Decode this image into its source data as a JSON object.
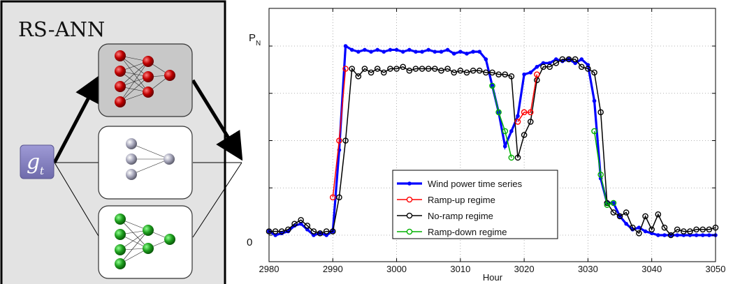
{
  "diagram": {
    "title": "RS-ANN",
    "input_symbol": "g",
    "input_subscript": "t",
    "colors": {
      "panel_bg": "#e3e3e3",
      "active_box_bg": "#c8c8c8",
      "input_box": "#8d89c6",
      "red_nodes": "#c00000",
      "gray_nodes": "#a0a0b8",
      "green_nodes": "#1fa01f"
    }
  },
  "chart_data": {
    "type": "line",
    "xlabel": "Hour",
    "ylabel": "",
    "y_tick_labels": {
      "top_main": "P",
      "top_sub": "N",
      "bottom": "0"
    },
    "xlim": [
      2980,
      3050
    ],
    "ylim": [
      0,
      1.04
    ],
    "x_ticks": [
      2980,
      2990,
      3000,
      3010,
      3020,
      3030,
      3040,
      3050
    ],
    "y_ticks": [
      0,
      0.25,
      0.5,
      0.75,
      1.0
    ],
    "grid": true,
    "legend_position": "lower-center",
    "series": [
      {
        "name": "Wind power time series",
        "color": "#0000ff",
        "marker": "dot",
        "x": [
          2980,
          2981,
          2982,
          2983,
          2984,
          2985,
          2986,
          2987,
          2988,
          2989,
          2990,
          2991,
          2992,
          2993,
          2994,
          2995,
          2996,
          2997,
          2998,
          2999,
          3000,
          3001,
          3002,
          3003,
          3004,
          3005,
          3006,
          3007,
          3008,
          3009,
          3010,
          3011,
          3012,
          3013,
          3014,
          3015,
          3016,
          3017,
          3018,
          3019,
          3020,
          3021,
          3022,
          3023,
          3024,
          3025,
          3026,
          3027,
          3028,
          3029,
          3030,
          3031,
          3032,
          3033,
          3034,
          3035,
          3036,
          3037,
          3038,
          3039,
          3040,
          3041,
          3042,
          3043,
          3044,
          3045,
          3046,
          3047,
          3048,
          3049,
          3050
        ],
        "y": [
          0.02,
          0.0,
          0.01,
          0.02,
          0.05,
          0.06,
          0.03,
          0.0,
          0.01,
          0.0,
          0.02,
          0.45,
          1.0,
          0.98,
          0.97,
          0.98,
          0.97,
          0.98,
          0.97,
          0.98,
          0.98,
          0.97,
          0.98,
          0.97,
          0.97,
          0.98,
          0.97,
          0.97,
          0.98,
          0.96,
          0.97,
          0.96,
          0.97,
          0.97,
          0.93,
          0.79,
          0.65,
          0.47,
          0.55,
          0.63,
          0.85,
          0.86,
          0.89,
          0.91,
          0.91,
          0.93,
          0.92,
          0.93,
          0.91,
          0.93,
          0.9,
          0.71,
          0.3,
          0.17,
          0.17,
          0.1,
          0.06,
          0.03,
          0.04,
          0.02,
          0.01,
          0.0,
          0.0,
          0.0,
          0.0,
          0.0,
          0.0,
          0.0,
          0.0,
          0.0,
          0.0
        ]
      },
      {
        "name": "Ramp-up regime",
        "color": "#ff0000",
        "marker": "circle",
        "x": [
          2990,
          2991,
          2992,
          3019,
          3020,
          3021,
          3022
        ],
        "y": [
          0.2,
          0.5,
          0.88,
          0.6,
          0.65,
          0.65,
          0.85
        ]
      },
      {
        "name": "No-ramp regime",
        "color": "#000000",
        "marker": "circle",
        "x": [
          2980,
          2981,
          2982,
          2983,
          2984,
          2985,
          2986,
          2987,
          2988,
          2989,
          2990,
          2991,
          2992,
          2993,
          2994,
          2995,
          2996,
          2997,
          2998,
          2999,
          3000,
          3001,
          3002,
          3003,
          3004,
          3005,
          3006,
          3007,
          3008,
          3009,
          3010,
          3011,
          3012,
          3013,
          3014,
          3015,
          3016,
          3017,
          3018,
          3019,
          3020,
          3021,
          3022,
          3023,
          3024,
          3025,
          3026,
          3027,
          3028,
          3029,
          3030,
          3031,
          3032,
          3033,
          3034,
          3035,
          3036,
          3037,
          3038,
          3039,
          3040,
          3041,
          3042,
          3043,
          3044,
          3045,
          3046,
          3047,
          3048,
          3049,
          3050
        ],
        "y": [
          0.02,
          0.02,
          0.02,
          0.03,
          0.06,
          0.08,
          0.05,
          0.02,
          0.01,
          0.02,
          0.02,
          0.2,
          0.5,
          0.88,
          0.84,
          0.88,
          0.86,
          0.88,
          0.86,
          0.88,
          0.88,
          0.89,
          0.87,
          0.88,
          0.88,
          0.88,
          0.88,
          0.87,
          0.88,
          0.86,
          0.87,
          0.86,
          0.87,
          0.87,
          0.86,
          0.86,
          0.85,
          0.85,
          0.84,
          0.41,
          0.53,
          0.6,
          0.82,
          0.89,
          0.89,
          0.91,
          0.93,
          0.93,
          0.93,
          0.89,
          0.88,
          0.86,
          0.65,
          0.17,
          0.12,
          0.1,
          0.12,
          0.04,
          0.01,
          0.1,
          0.03,
          0.11,
          0.04,
          0.0,
          0.03,
          0.02,
          0.02,
          0.03,
          0.03,
          0.03,
          0.04
        ]
      },
      {
        "name": "Ramp-down regime",
        "color": "#00b000",
        "marker": "circle",
        "x": [
          3015,
          3016,
          3017,
          3018,
          3031,
          3032,
          3033,
          3034
        ],
        "y": [
          0.79,
          0.65,
          0.55,
          0.41,
          0.55,
          0.32,
          0.16,
          0.17
        ]
      }
    ]
  }
}
